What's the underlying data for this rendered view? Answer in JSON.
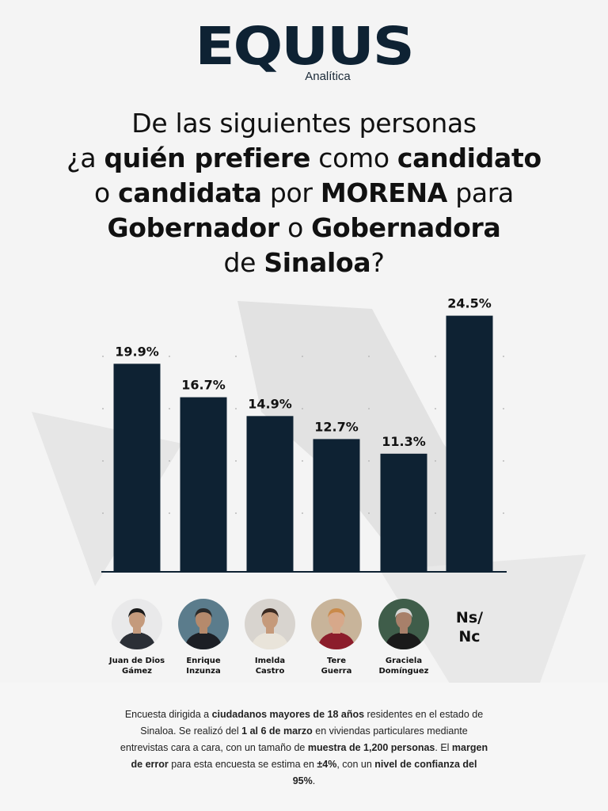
{
  "brand": {
    "name": "EQUUS",
    "sub": "Analítica"
  },
  "question": {
    "parts": [
      {
        "t": "De las siguientes personas",
        "b": false,
        "br": true
      },
      {
        "t": "¿a ",
        "b": false
      },
      {
        "t": "quién prefiere",
        "b": true
      },
      {
        "t": " como ",
        "b": false
      },
      {
        "t": "candidato",
        "b": true,
        "br": true
      },
      {
        "t": "o ",
        "b": false
      },
      {
        "t": "candidata",
        "b": true
      },
      {
        "t": " por ",
        "b": false
      },
      {
        "t": "MORENA",
        "b": true
      },
      {
        "t": " para",
        "b": false,
        "br": true
      },
      {
        "t": "Gobernador",
        "b": true
      },
      {
        "t": " o ",
        "b": false
      },
      {
        "t": "Gobernadora",
        "b": true,
        "br": true
      },
      {
        "t": "de ",
        "b": false
      },
      {
        "t": "Sinaloa",
        "b": true
      },
      {
        "t": "?",
        "b": false
      }
    ]
  },
  "chart_data": {
    "type": "bar",
    "categories": [
      "Juan de Dios Gámez",
      "Enrique Inzunza",
      "Imelda Castro",
      "Tere Guerra",
      "Graciela Domínguez",
      "Ns/ Nc"
    ],
    "values": [
      19.9,
      16.7,
      14.9,
      12.7,
      11.3,
      24.5
    ],
    "data_labels": [
      "19.9%",
      "16.7%",
      "14.9%",
      "12.7%",
      "11.3%",
      "24.5%"
    ],
    "title": "",
    "xlabel": "",
    "ylabel": "",
    "ylim": [
      0,
      25
    ],
    "grid": true,
    "bar_color": "#0e2233"
  },
  "candidates": [
    {
      "line1": "Juan de Dios",
      "line2": "Gámez",
      "suit": "#2b2f36",
      "skin": "#c49a7c",
      "hair": "#1a1a1a",
      "bg": "#e9e9ea"
    },
    {
      "line1": "Enrique",
      "line2": "Inzunza",
      "suit": "#1c1f25",
      "skin": "#b58a6c",
      "hair": "#2a2a2a",
      "bg": "#5b7c8c"
    },
    {
      "line1": "Imelda",
      "line2": "Castro",
      "suit": "#e9e4da",
      "skin": "#c59a7b",
      "hair": "#3a2a22",
      "bg": "#d8d4cf"
    },
    {
      "line1": "Tere",
      "line2": "Guerra",
      "suit": "#8c1d2b",
      "skin": "#d7a88a",
      "hair": "#c98a4a",
      "bg": "#c8b49a"
    },
    {
      "line1": "Graciela",
      "line2": "Domínguez",
      "suit": "#1a1a1a",
      "skin": "#a8806a",
      "hair": "#d8d8d8",
      "bg": "#3f5d4a"
    }
  ],
  "nsnc": {
    "line1": "Ns/",
    "line2": "Nc"
  },
  "footnote": {
    "parts": [
      {
        "t": "Encuesta dirigida a ",
        "b": false
      },
      {
        "t": "ciudadanos mayores de 18 años",
        "b": true
      },
      {
        "t": " residentes en el estado de Sinaloa. Se realizó del ",
        "b": false
      },
      {
        "t": "1 al 6 de marzo",
        "b": true
      },
      {
        "t": " en viviendas particulares mediante entrevistas cara a cara, con un tamaño de ",
        "b": false
      },
      {
        "t": "muestra de 1,200 personas",
        "b": true
      },
      {
        "t": ". El ",
        "b": false
      },
      {
        "t": "margen de error",
        "b": true
      },
      {
        "t": " para esta encuesta se estima en ",
        "b": false
      },
      {
        "t": "±4%",
        "b": true
      },
      {
        "t": ", con un ",
        "b": false
      },
      {
        "t": "nivel de confianza del 95%",
        "b": true
      },
      {
        "t": ".",
        "b": false
      }
    ]
  }
}
